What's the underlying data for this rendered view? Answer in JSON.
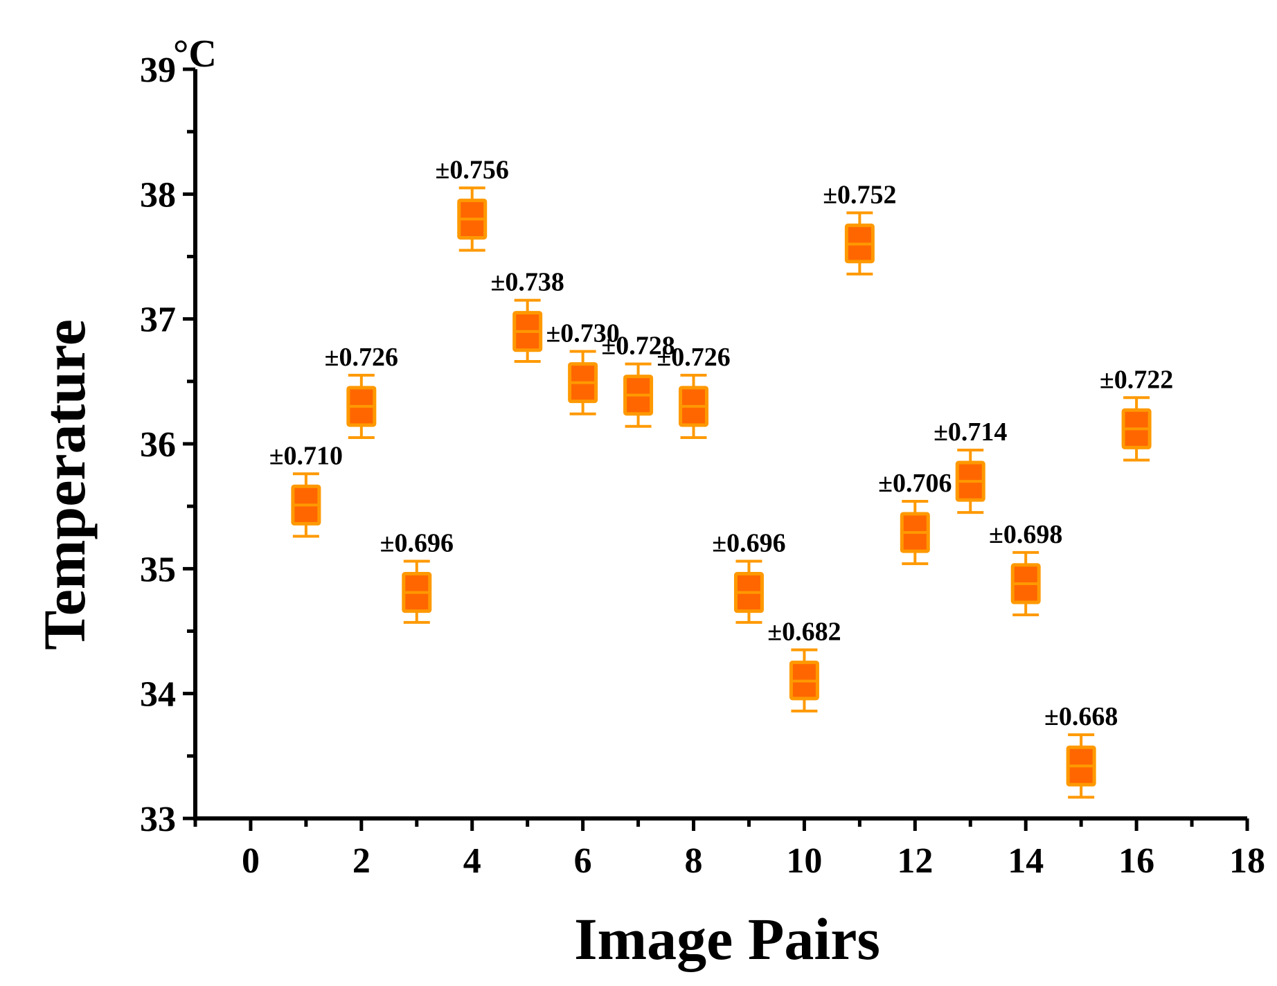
{
  "chart_data": {
    "type": "box",
    "xlabel": "Image Pairs",
    "ylabel": "Temperature",
    "unit": "°C",
    "xlim": [
      -1,
      18
    ],
    "ylim": [
      33,
      39
    ],
    "xticks": [
      "0",
      "2",
      "4",
      "6",
      "8",
      "10",
      "12",
      "14",
      "16",
      "18"
    ],
    "yticks": [
      "33",
      "34",
      "35",
      "36",
      "37",
      "38",
      "39"
    ],
    "grid": false,
    "legend": "none",
    "colors": {
      "box_fill": "#FF6600",
      "box_edge": "#FF9900",
      "axis": "#000000"
    },
    "series": [
      {
        "x": 1,
        "median": 35.51,
        "q1": 35.36,
        "q3": 35.66,
        "whisker_low": 35.26,
        "whisker_high": 35.76,
        "label": "±0.710"
      },
      {
        "x": 2,
        "median": 36.3,
        "q1": 36.15,
        "q3": 36.45,
        "whisker_low": 36.05,
        "whisker_high": 36.55,
        "label": "±0.726"
      },
      {
        "x": 3,
        "median": 34.81,
        "q1": 34.66,
        "q3": 34.96,
        "whisker_low": 34.57,
        "whisker_high": 35.06,
        "label": "±0.696"
      },
      {
        "x": 4,
        "median": 37.8,
        "q1": 37.65,
        "q3": 37.95,
        "whisker_low": 37.55,
        "whisker_high": 38.05,
        "label": "±0.756"
      },
      {
        "x": 5,
        "median": 36.9,
        "q1": 36.75,
        "q3": 37.05,
        "whisker_low": 36.66,
        "whisker_high": 37.15,
        "label": "±0.738"
      },
      {
        "x": 6,
        "median": 36.49,
        "q1": 36.34,
        "q3": 36.64,
        "whisker_low": 36.24,
        "whisker_high": 36.74,
        "label": "±0.730"
      },
      {
        "x": 7,
        "median": 36.39,
        "q1": 36.24,
        "q3": 36.54,
        "whisker_low": 36.14,
        "whisker_high": 36.64,
        "label": "±0.728"
      },
      {
        "x": 8,
        "median": 36.3,
        "q1": 36.15,
        "q3": 36.45,
        "whisker_low": 36.05,
        "whisker_high": 36.55,
        "label": "±0.726"
      },
      {
        "x": 9,
        "median": 34.81,
        "q1": 34.66,
        "q3": 34.96,
        "whisker_low": 34.57,
        "whisker_high": 35.06,
        "label": "±0.696"
      },
      {
        "x": 10,
        "median": 34.1,
        "q1": 33.96,
        "q3": 34.25,
        "whisker_low": 33.86,
        "whisker_high": 34.35,
        "label": "±0.682"
      },
      {
        "x": 11,
        "median": 37.6,
        "q1": 37.46,
        "q3": 37.75,
        "whisker_low": 37.36,
        "whisker_high": 37.85,
        "label": "±0.752"
      },
      {
        "x": 12,
        "median": 35.29,
        "q1": 35.14,
        "q3": 35.44,
        "whisker_low": 35.04,
        "whisker_high": 35.54,
        "label": "±0.706"
      },
      {
        "x": 13,
        "median": 35.7,
        "q1": 35.55,
        "q3": 35.85,
        "whisker_low": 35.45,
        "whisker_high": 35.95,
        "label": "±0.714"
      },
      {
        "x": 14,
        "median": 34.88,
        "q1": 34.73,
        "q3": 35.03,
        "whisker_low": 34.63,
        "whisker_high": 35.13,
        "label": "±0.698"
      },
      {
        "x": 15,
        "median": 33.42,
        "q1": 33.27,
        "q3": 33.57,
        "whisker_low": 33.17,
        "whisker_high": 33.67,
        "label": "±0.668"
      },
      {
        "x": 16,
        "median": 36.12,
        "q1": 35.97,
        "q3": 36.27,
        "whisker_low": 35.87,
        "whisker_high": 36.37,
        "label": "±0.722"
      }
    ]
  }
}
